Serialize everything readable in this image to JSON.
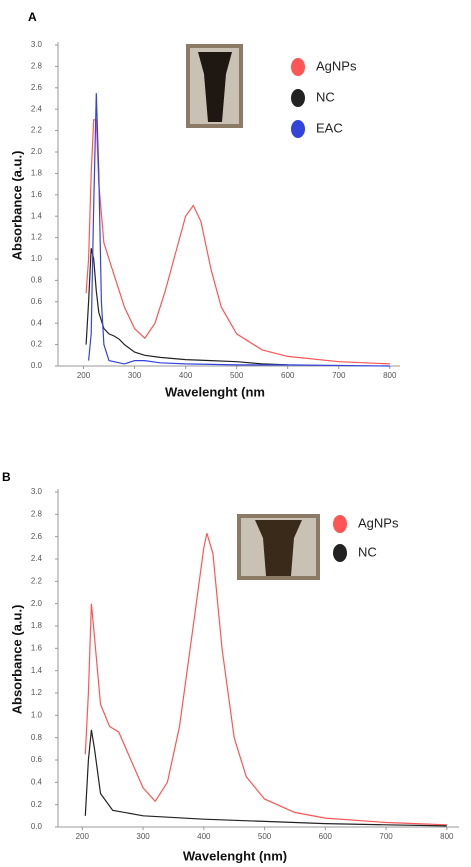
{
  "chart_data": [
    {
      "type": "line",
      "panel_label": "A",
      "y_label": "Absorbance (a.u.)",
      "x_label": "Wavelenght (nm",
      "xlim": [
        150,
        820
      ],
      "ylim": [
        0,
        3.0
      ],
      "xticks": [
        200,
        300,
        400,
        500,
        600,
        700,
        800
      ],
      "yticks": [
        {
          "value": 0,
          "label": "0.0"
        },
        0.2,
        0.4,
        0.6,
        0.8,
        {
          "value": 1,
          "label": "1.0"
        },
        1.2,
        1.4,
        1.6,
        1.8,
        {
          "value": 2,
          "label": "2.0"
        },
        2.2,
        2.4,
        2.6,
        2.8,
        {
          "value": 3,
          "label": "3.0"
        }
      ],
      "series": [
        {
          "name": "AgNPs",
          "color": "#ff5555",
          "x": [
            205,
            210,
            215,
            220,
            225,
            230,
            240,
            250,
            260,
            270,
            280,
            300,
            320,
            340,
            360,
            380,
            400,
            415,
            430,
            450,
            470,
            500,
            550,
            600,
            700,
            800
          ],
          "values": [
            0.68,
            1.0,
            1.8,
            2.3,
            2.3,
            1.7,
            1.15,
            1.0,
            0.85,
            0.7,
            0.55,
            0.35,
            0.26,
            0.4,
            0.7,
            1.05,
            1.4,
            1.5,
            1.35,
            0.9,
            0.55,
            0.3,
            0.15,
            0.09,
            0.04,
            0.02
          ]
        },
        {
          "name": "NC",
          "color": "#222222",
          "x": [
            205,
            210,
            215,
            220,
            225,
            230,
            240,
            250,
            260,
            270,
            280,
            300,
            320,
            350,
            400,
            450,
            500,
            550,
            600
          ],
          "values": [
            0.2,
            0.6,
            1.1,
            1.0,
            0.7,
            0.5,
            0.35,
            0.3,
            0.28,
            0.25,
            0.2,
            0.13,
            0.1,
            0.08,
            0.06,
            0.05,
            0.04,
            0.02,
            0.01
          ]
        },
        {
          "name": "EAC",
          "color": "#3344dd",
          "x": [
            210,
            215,
            220,
            225,
            230,
            235,
            240,
            250,
            280,
            300,
            320,
            350,
            400,
            500,
            600,
            800
          ],
          "values": [
            0.05,
            0.3,
            1.5,
            2.55,
            1.8,
            0.6,
            0.2,
            0.05,
            0.02,
            0.05,
            0.05,
            0.03,
            0.02,
            0.01,
            0.01,
            0.0
          ]
        }
      ]
    },
    {
      "type": "line",
      "panel_label": "B",
      "y_label": "Absorbance (a.u.)",
      "x_label": "Wavelenght (nm)",
      "xlim": [
        160,
        820
      ],
      "ylim": [
        0,
        3.0
      ],
      "xticks": [
        200,
        300,
        400,
        500,
        600,
        700,
        800
      ],
      "yticks": [
        {
          "value": 0,
          "label": "0.0"
        },
        0.2,
        0.4,
        0.6,
        0.8,
        {
          "value": 1,
          "label": "1.0"
        },
        1.2,
        1.4,
        1.6,
        1.8,
        {
          "value": 2,
          "label": "2.0"
        },
        2.2,
        2.4,
        2.6,
        2.8,
        {
          "value": 3,
          "label": "3.0"
        }
      ],
      "series": [
        {
          "name": "AgNPs",
          "color": "#ff5555",
          "x": [
            205,
            210,
            215,
            220,
            230,
            245,
            260,
            280,
            300,
            320,
            340,
            360,
            380,
            400,
            405,
            415,
            430,
            450,
            470,
            500,
            550,
            600,
            700,
            800
          ],
          "values": [
            0.65,
            1.2,
            2.0,
            1.7,
            1.1,
            0.9,
            0.85,
            0.6,
            0.35,
            0.23,
            0.4,
            0.9,
            1.7,
            2.5,
            2.63,
            2.45,
            1.6,
            0.8,
            0.45,
            0.25,
            0.13,
            0.08,
            0.04,
            0.02
          ]
        },
        {
          "name": "NC",
          "color": "#222222",
          "x": [
            205,
            210,
            215,
            220,
            230,
            250,
            300,
            400,
            500,
            600,
            700,
            800
          ],
          "values": [
            0.1,
            0.6,
            0.87,
            0.7,
            0.3,
            0.15,
            0.1,
            0.07,
            0.05,
            0.03,
            0.02,
            0.01
          ]
        }
      ]
    }
  ]
}
